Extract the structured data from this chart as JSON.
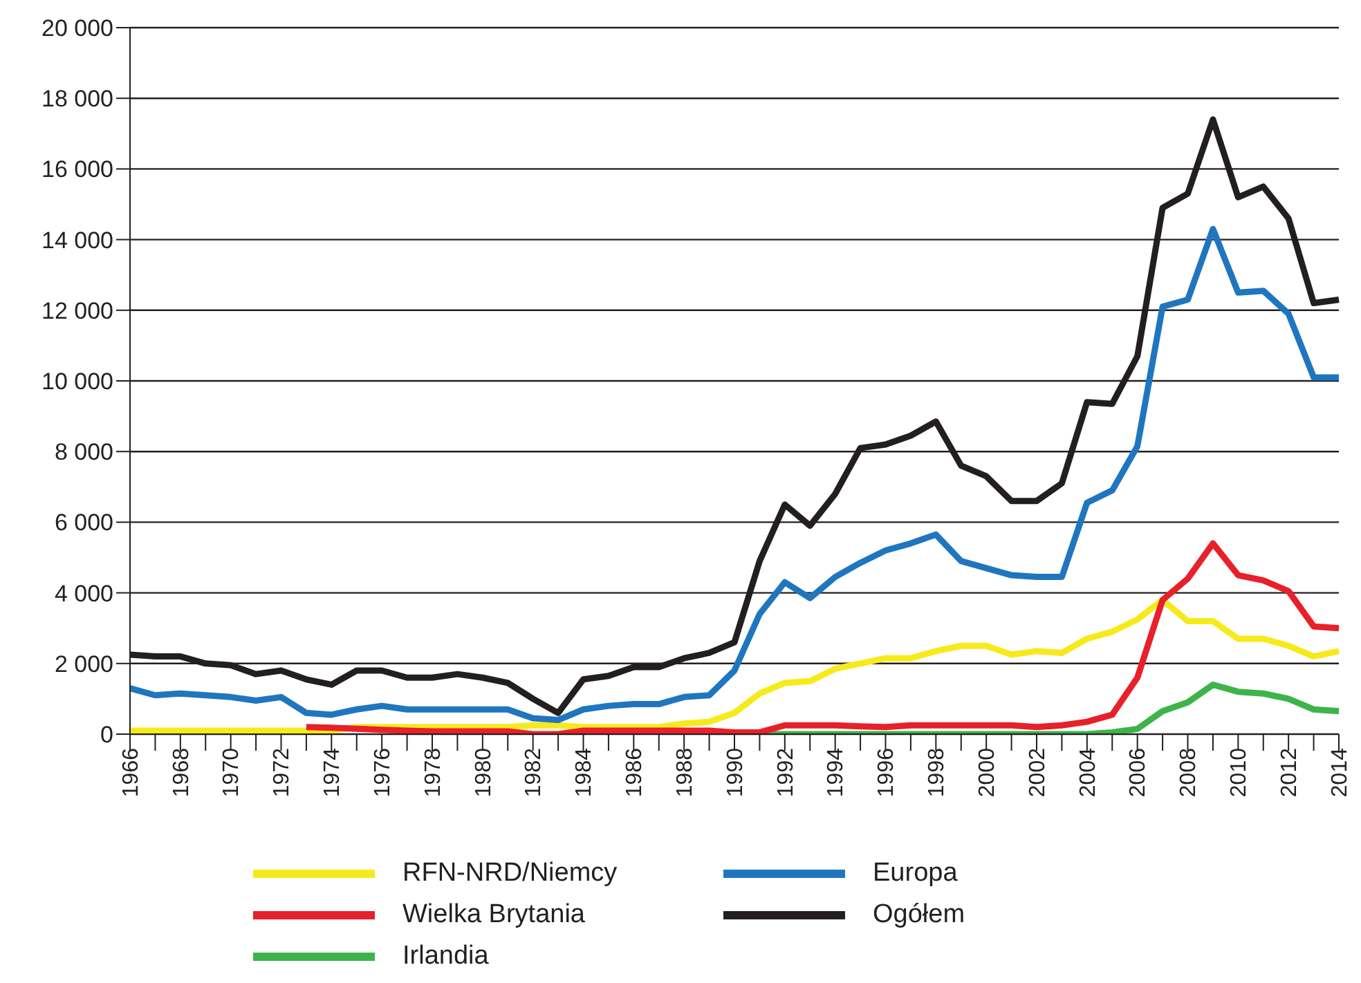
{
  "chart_data": {
    "type": "line",
    "categories": [
      "1966",
      null,
      "1968",
      null,
      "1970",
      null,
      "1972",
      null,
      "1974",
      null,
      "1976",
      null,
      "1978",
      null,
      "1980",
      null,
      "1982",
      null,
      "1984",
      null,
      "1986",
      null,
      "1988",
      null,
      "1990",
      null,
      "1992",
      null,
      "1994",
      null,
      "1996",
      null,
      "1998",
      null,
      "2000",
      null,
      "2002",
      null,
      "2004",
      null,
      "2006",
      null,
      "2008",
      null,
      "2010",
      null,
      "2012",
      null,
      "2014"
    ],
    "ylim": [
      0,
      20000
    ],
    "yticks": [
      {
        "value": 0,
        "label": "0"
      },
      {
        "value": 2000,
        "label": "2 000"
      },
      {
        "value": 4000,
        "label": "4 000"
      },
      {
        "value": 6000,
        "label": "6 000"
      },
      {
        "value": 8000,
        "label": "8 000"
      },
      {
        "value": 10000,
        "label": "10 000"
      },
      {
        "value": 12000,
        "label": "12 000"
      },
      {
        "value": 14000,
        "label": "14 000"
      },
      {
        "value": 16000,
        "label": "16 000"
      },
      {
        "value": 18000,
        "label": "18 000"
      },
      {
        "value": 20000,
        "label": "20 000"
      }
    ],
    "grid": "y",
    "legend": "bottom",
    "marker": "none",
    "line_style": "solid",
    "series": [
      {
        "name": "RFN-NRD/Niemcy",
        "color": "#f7ea1c",
        "values": [
          100,
          100,
          100,
          100,
          100,
          100,
          100,
          100,
          100,
          200,
          200,
          200,
          200,
          200,
          200,
          200,
          250,
          250,
          200,
          200,
          200,
          200,
          300,
          350,
          600,
          1150,
          1450,
          1500,
          1850,
          2000,
          2150,
          2150,
          2350,
          2500,
          2500,
          2250,
          2350,
          2300,
          2700,
          2900,
          3250,
          3800,
          3200,
          3200,
          2700,
          2700,
          2500,
          2200,
          2350
        ]
      },
      {
        "name": "Europa",
        "color": "#1f76bf",
        "values": [
          1300,
          1100,
          1150,
          1100,
          1050,
          950,
          1050,
          600,
          550,
          700,
          800,
          700,
          700,
          700,
          700,
          700,
          450,
          400,
          700,
          800,
          850,
          850,
          1050,
          1100,
          1800,
          3400,
          4300,
          3850,
          4450,
          4850,
          5200,
          5400,
          5650,
          4900,
          4700,
          4500,
          4450,
          4450,
          6550,
          6900,
          8150,
          12100,
          12300,
          14300,
          12500,
          12550,
          11900,
          10100,
          10100
        ]
      },
      {
        "name": "Wielka Brytania",
        "color": "#e8202a",
        "values": [
          null,
          null,
          null,
          null,
          null,
          null,
          null,
          200,
          180,
          150,
          120,
          100,
          80,
          80,
          80,
          80,
          0,
          0,
          100,
          100,
          100,
          100,
          100,
          100,
          50,
          50,
          250,
          250,
          250,
          220,
          200,
          250,
          250,
          250,
          250,
          250,
          200,
          250,
          350,
          550,
          1600,
          3800,
          4400,
          5400,
          4500,
          4350,
          4050,
          3050,
          3000
        ]
      },
      {
        "name": "Ogółem",
        "color": "#231f20",
        "values": [
          2250,
          2200,
          2200,
          2000,
          1950,
          1700,
          1800,
          1550,
          1400,
          1800,
          1800,
          1600,
          1600,
          1700,
          1600,
          1450,
          1000,
          600,
          1550,
          1650,
          1900,
          1900,
          2150,
          2300,
          2600,
          4900,
          6500,
          5900,
          6800,
          8100,
          8200,
          8450,
          8850,
          7600,
          7300,
          6600,
          6600,
          7100,
          9400,
          9350,
          10700,
          14900,
          15300,
          17400,
          15200,
          15500,
          14600,
          12200,
          12300
        ]
      },
      {
        "name": "Irlandia",
        "color": "#3cb44a",
        "values": [
          null,
          null,
          null,
          null,
          null,
          null,
          null,
          null,
          null,
          null,
          null,
          null,
          null,
          null,
          null,
          null,
          null,
          null,
          null,
          null,
          null,
          null,
          null,
          null,
          0,
          0,
          0,
          0,
          0,
          0,
          0,
          0,
          0,
          0,
          0,
          0,
          0,
          0,
          0,
          50,
          150,
          650,
          900,
          1400,
          1200,
          1150,
          1000,
          700,
          650
        ]
      }
    ]
  }
}
